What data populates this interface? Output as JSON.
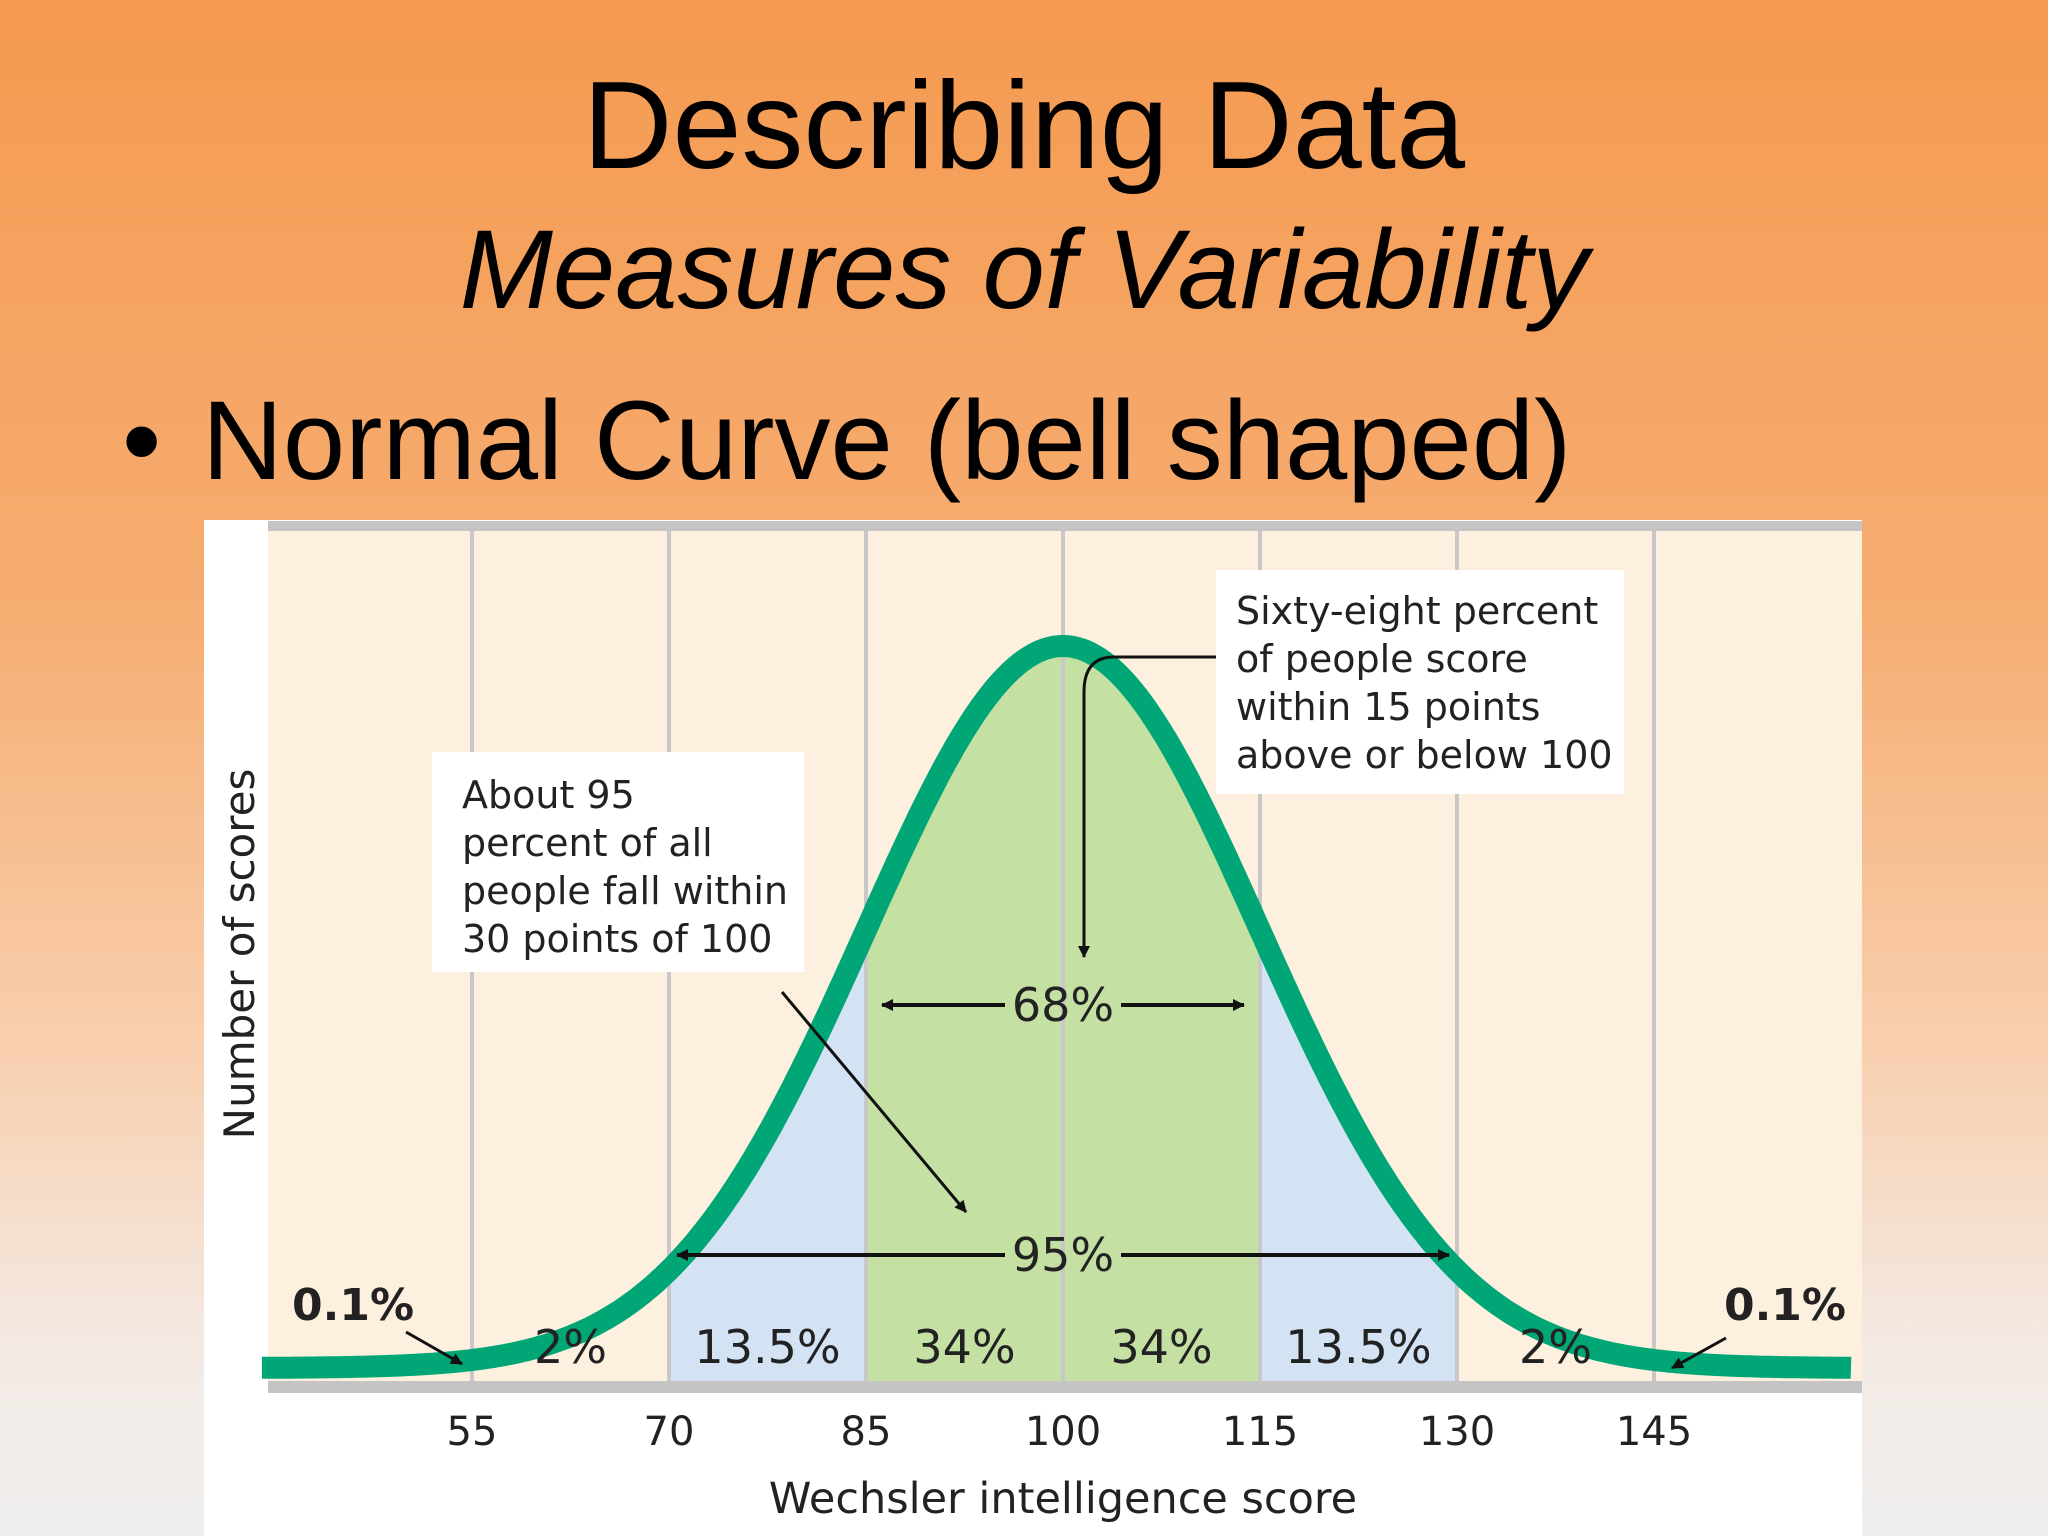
{
  "slide": {
    "title": "Describing Data",
    "subtitle": "Measures of Variability",
    "bullet": "Normal Curve (bell shaped)"
  },
  "chart_data": {
    "type": "area",
    "xlabel": "Wechsler intelligence score",
    "ylabel": "Number of scores",
    "x_ticks": [
      55,
      70,
      85,
      100,
      115,
      130,
      145
    ],
    "xlim": [
      39,
      160
    ],
    "distribution": {
      "mean": 100,
      "sd": 15
    },
    "bands": [
      {
        "from": 70,
        "to": 85,
        "label": "13.5%",
        "color": "#d3e3f4"
      },
      {
        "from": 85,
        "to": 100,
        "label": "34%",
        "color": "#c5e0a3"
      },
      {
        "from": 100,
        "to": 115,
        "label": "34%",
        "color": "#c5e0a3"
      },
      {
        "from": 115,
        "to": 130,
        "label": "13.5%",
        "color": "#d3e3f4"
      }
    ],
    "tail_labels": [
      {
        "at": 62.5,
        "label": "2%"
      },
      {
        "at": 137.5,
        "label": "2%"
      }
    ],
    "extreme_labels": [
      {
        "side": "left",
        "label": "0.1%"
      },
      {
        "side": "right",
        "label": "0.1%"
      }
    ],
    "ranges": [
      {
        "from": 85,
        "to": 115,
        "label": "68%"
      },
      {
        "from": 70,
        "to": 130,
        "label": "95%"
      }
    ],
    "annotations": [
      {
        "lines": [
          "Sixty-eight percent",
          "of people score",
          "within 15 points",
          "above or below 100"
        ]
      },
      {
        "lines": [
          "About 95",
          "percent of all",
          "people fall within",
          "30 points of 100"
        ]
      }
    ],
    "colors": {
      "curve": "#00a676",
      "background": "#fdf0de",
      "gridline": "#c8c8c8",
      "axis": "#c4c4c4"
    }
  }
}
